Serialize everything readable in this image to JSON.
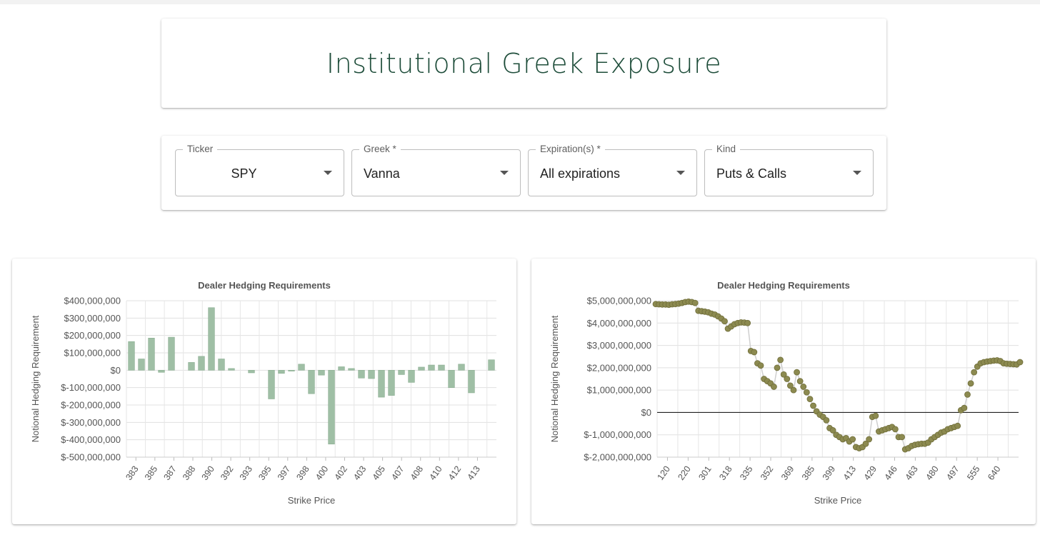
{
  "header": {
    "title": "Institutional Greek Exposure"
  },
  "filters": {
    "ticker": {
      "label": "Ticker",
      "value": "SPY"
    },
    "greek": {
      "label": "Greek *",
      "value": "Vanna"
    },
    "expiration": {
      "label": "Expiration(s) *",
      "value": "All expirations"
    },
    "kind": {
      "label": "Kind",
      "value": "Puts & Calls"
    }
  },
  "icons": {
    "dropdown": "caret-down-icon"
  },
  "colors": {
    "title": "#1e4d3a",
    "bar": "#9fbfa5",
    "bar_stroke": "#8aae91",
    "scatter": "#8c8a50",
    "scatter_stroke": "#6f6d3a"
  },
  "chart_data": [
    {
      "type": "bar",
      "title": "Dealer Hedging Requirements",
      "xlabel": "Strike Price",
      "ylabel": "Notional Hedging Requirement",
      "ylim": [
        -500000000,
        400000000
      ],
      "yticks": [
        400000000,
        300000000,
        200000000,
        100000000,
        0,
        -100000000,
        -200000000,
        -300000000,
        -400000000,
        -500000000
      ],
      "ytick_labels": [
        "$400,000,000",
        "$300,000,000",
        "$200,000,000",
        "$100,000,000",
        "$0",
        "$-100,000,000",
        "$-200,000,000",
        "$-300,000,000",
        "$-400,000,000",
        "$-500,000,000"
      ],
      "xtick_labels": [
        "383",
        "385",
        "387",
        "388",
        "390",
        "392",
        "393",
        "395",
        "397",
        "398",
        "400",
        "402",
        "403",
        "405",
        "407",
        "408",
        "410",
        "412",
        "413"
      ],
      "grid": true,
      "values": [
        165000000,
        65000000,
        185000000,
        -12000000,
        190000000,
        0,
        45000000,
        80000000,
        360000000,
        65000000,
        10000000,
        0,
        -15000000,
        0,
        -165000000,
        -18000000,
        -5000000,
        35000000,
        -135000000,
        -28000000,
        -425000000,
        20000000,
        10000000,
        -45000000,
        -48000000,
        -155000000,
        -145000000,
        -25000000,
        -70000000,
        18000000,
        30000000,
        30000000,
        -100000000,
        35000000,
        -130000000,
        0,
        60000000
      ]
    },
    {
      "type": "scatter",
      "title": "Dealer Hedging Requirements",
      "xlabel": "Strike Price",
      "ylabel": "Notional Hedging Requirement",
      "ylim": [
        -2000000000,
        5000000000
      ],
      "yticks": [
        5000000000,
        4000000000,
        3000000000,
        2000000000,
        1000000000,
        0,
        -1000000000,
        -2000000000
      ],
      "ytick_labels": [
        "$5,000,000,000",
        "$4,000,000,000",
        "$3,000,000,000",
        "$2,000,000,000",
        "$1,000,000,000",
        "$0",
        "$-1,000,000,000",
        "$-2,000,000,000"
      ],
      "xtick_labels": [
        "120",
        "220",
        "301",
        "318",
        "335",
        "352",
        "369",
        "385",
        "399",
        "413",
        "429",
        "446",
        "463",
        "480",
        "497",
        "555",
        "640"
      ],
      "grid": true,
      "zero_line": true,
      "values": [
        4850000000,
        4840000000,
        4830000000,
        4830000000,
        4820000000,
        4840000000,
        4850000000,
        4870000000,
        4900000000,
        4940000000,
        4960000000,
        4940000000,
        4900000000,
        4550000000,
        4530000000,
        4510000000,
        4480000000,
        4420000000,
        4380000000,
        4300000000,
        4200000000,
        4080000000,
        3750000000,
        3850000000,
        3950000000,
        4000000000,
        4030000000,
        4020000000,
        4000000000,
        2750000000,
        2700000000,
        2200000000,
        2100000000,
        1500000000,
        1400000000,
        1300000000,
        1150000000,
        2000000000,
        2350000000,
        1700000000,
        1500000000,
        1200000000,
        1000000000,
        1800000000,
        1400000000,
        1150000000,
        900000000,
        600000000,
        300000000,
        50000000,
        -100000000,
        -200000000,
        -350000000,
        -700000000,
        -800000000,
        -1000000000,
        -1100000000,
        -1200000000,
        -1150000000,
        -1300000000,
        -1200000000,
        -1550000000,
        -1600000000,
        -1550000000,
        -1400000000,
        -1200000000,
        -200000000,
        -150000000,
        -850000000,
        -800000000,
        -750000000,
        -700000000,
        -650000000,
        -750000000,
        -1100000000,
        -1100000000,
        -1650000000,
        -1600000000,
        -1500000000,
        -1450000000,
        -1420000000,
        -1400000000,
        -1400000000,
        -1350000000,
        -1200000000,
        -1100000000,
        -1000000000,
        -900000000,
        -850000000,
        -750000000,
        -700000000,
        -650000000,
        -600000000,
        100000000,
        200000000,
        800000000,
        1300000000,
        1800000000,
        2050000000,
        2200000000,
        2250000000,
        2280000000,
        2300000000,
        2320000000,
        2330000000,
        2300000000,
        2200000000,
        2180000000,
        2170000000,
        2160000000,
        2150000000,
        2250000000
      ]
    }
  ]
}
